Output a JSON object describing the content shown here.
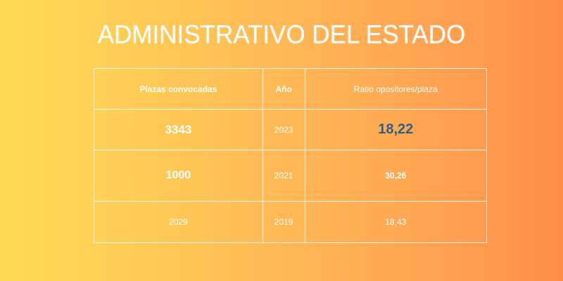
{
  "title": "ADMINISTRATIVO DEL ESTADO",
  "colors": {
    "accent": "#2f5f86",
    "text": "#ffffff"
  },
  "table": {
    "headers": [
      "Plazas convocadas",
      "Año",
      "Ratio opositores/plaza"
    ],
    "rows": [
      {
        "plazas": "3343",
        "anio": "2023",
        "ratio": "18,22"
      },
      {
        "plazas": "1000",
        "anio": "2021",
        "ratio": "30,26"
      },
      {
        "plazas": "2029",
        "anio": "2019",
        "ratio": "18,43"
      }
    ]
  }
}
